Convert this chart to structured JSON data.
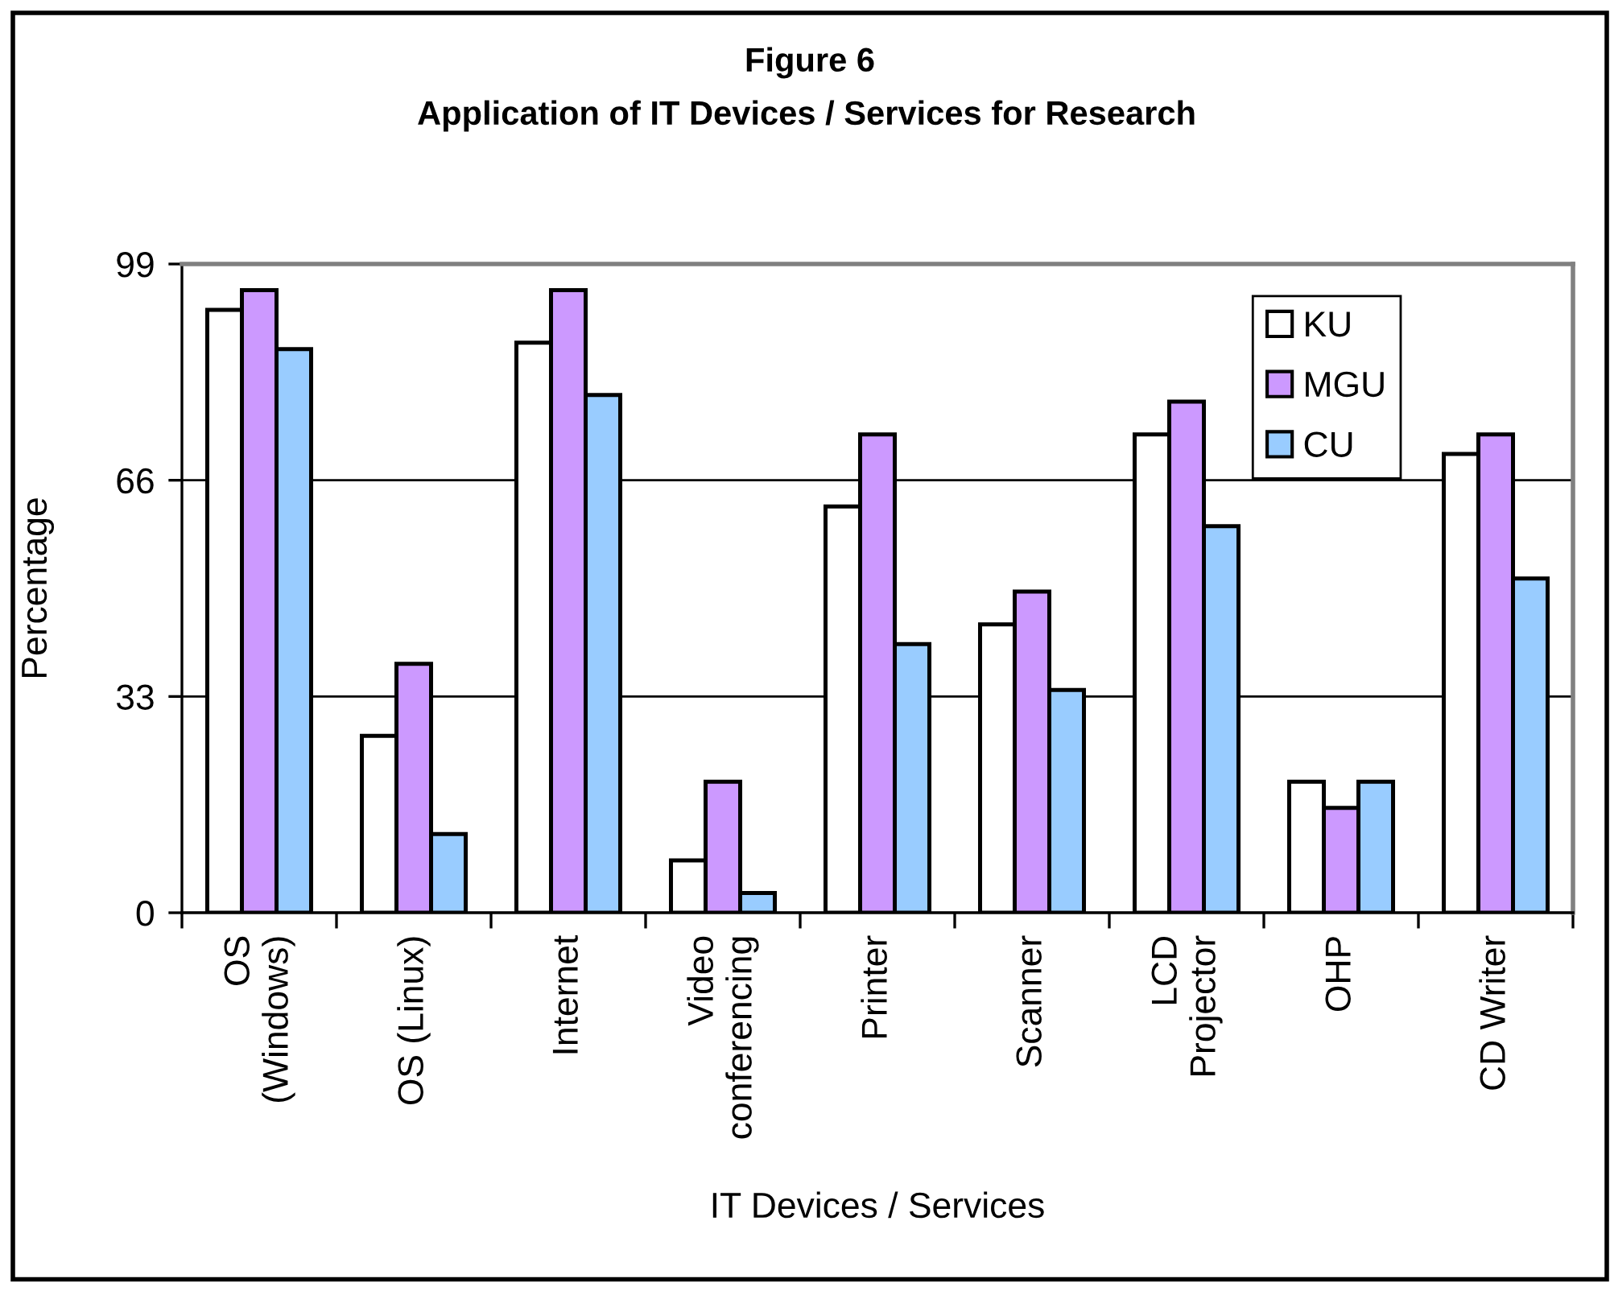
{
  "chart_data": {
    "type": "bar",
    "title": "Figure 6",
    "subtitle": "Application of IT Devices / Services for Research",
    "xlabel": "IT Devices / Services",
    "ylabel": "Percentage",
    "categories": [
      "OS\n(Windows)",
      "OS (Linux)",
      "Internet",
      "Video\nconferencing",
      "Printer",
      "Scanner",
      "LCD\nProjector",
      "OHP",
      "CD Writer"
    ],
    "series": [
      {
        "name": "KU",
        "color": "#ffffff",
        "values": [
          92,
          27,
          87,
          8,
          62,
          44,
          73,
          20,
          70
        ]
      },
      {
        "name": "MGU",
        "color": "#cc99ff",
        "values": [
          95,
          38,
          95,
          20,
          73,
          49,
          78,
          16,
          73
        ]
      },
      {
        "name": "CU",
        "color": "#99ccff",
        "values": [
          86,
          12,
          79,
          3,
          41,
          34,
          59,
          20,
          51
        ]
      }
    ],
    "ylim": [
      0,
      99
    ],
    "yticks": [
      0,
      33,
      66,
      99
    ],
    "grid": "y",
    "legend": "top right"
  }
}
